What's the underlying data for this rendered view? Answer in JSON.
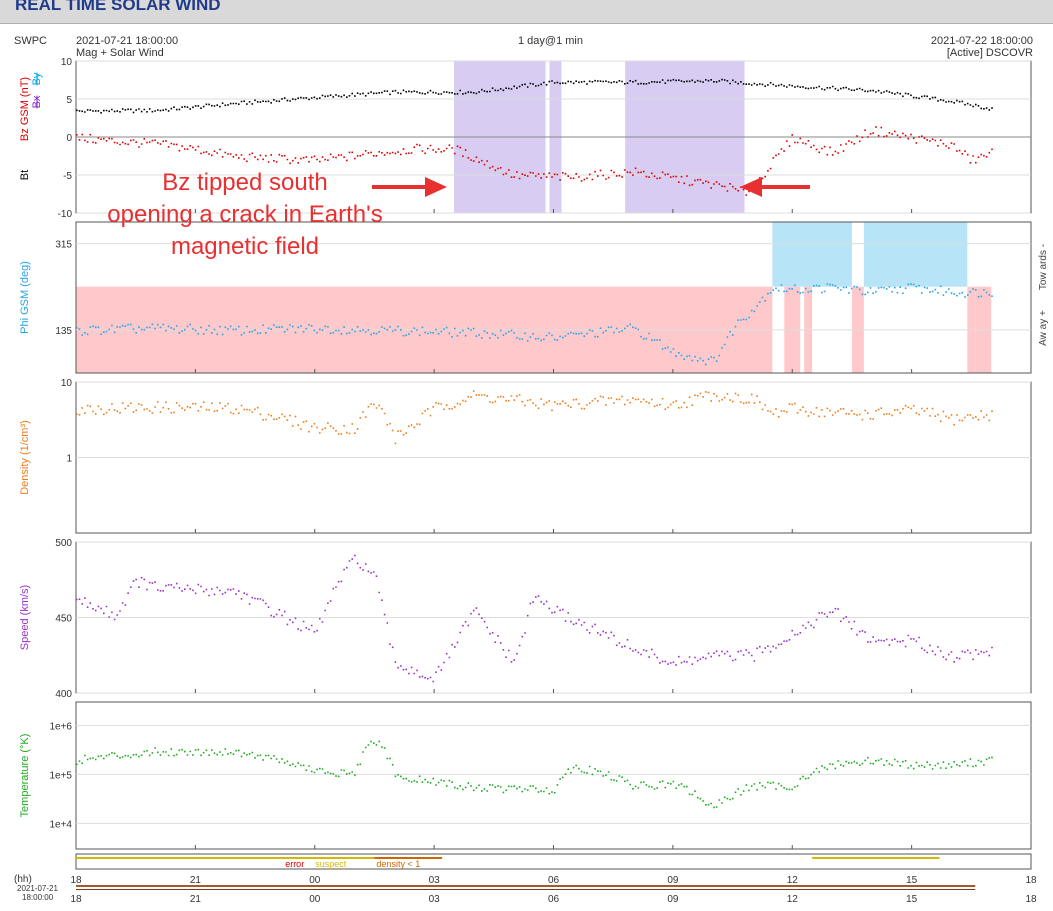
{
  "page_title": "REAL TIME SOLAR WIND",
  "header": {
    "source": "SWPC",
    "start_time": "2021-07-21 18:00:00",
    "subtitle": "Mag + Solar Wind",
    "resolution": "1 day@1 min",
    "end_time": "2021-07-22 18:00:00",
    "spacecraft": "[Active] DSCOVR"
  },
  "annotation": {
    "line1": "Bz tipped south",
    "line2": "opening a crack in Earth's",
    "line3": "magnetic field"
  },
  "colors": {
    "bt": "#000000",
    "bz": "#dd0000",
    "by": "#00a8e8",
    "bx": "#8b2fc9",
    "phi": "#2aa3e6",
    "density": "#ee7d1f",
    "speed": "#9932cc",
    "temperature": "#22aa22",
    "south_shade": "#d8ccf2",
    "towards_shade": "#b8e4f7",
    "away_shade": "#ffc9cc",
    "error": "#dd0000",
    "suspect": "#d4b800",
    "density_lt1": "#cc6600",
    "arrow": "#e83030"
  },
  "xaxis": {
    "unit_label": "(hh)",
    "ticks": [
      "18",
      "21",
      "00",
      "03",
      "06",
      "09",
      "12",
      "15",
      "18"
    ],
    "date_label_line1": "2021-07-21",
    "date_label_line2": "18:00:00"
  },
  "legend_flags": {
    "error": "error",
    "suspect": "suspect",
    "density": "density < 1"
  },
  "chart_data": [
    {
      "type": "scatter",
      "title": "Mag",
      "ylabel": "Bz GSM (nT)",
      "ylabel_extra": [
        "Bt",
        "Bx",
        "By"
      ],
      "ylim": [
        -10,
        10
      ],
      "yticks": [
        "10",
        "5",
        "0",
        "-5",
        "-10"
      ],
      "series": [
        {
          "name": "Bt",
          "x": [
            0,
            2,
            4,
            6,
            8,
            10,
            12,
            14,
            16,
            18,
            20,
            22,
            23
          ],
          "values": [
            3.5,
            3.6,
            4.5,
            5.3,
            6,
            6,
            7.3,
            7.3,
            7.5,
            6.8,
            6.2,
            4.8,
            3.8
          ]
        },
        {
          "name": "Bz",
          "x": [
            0,
            1,
            2,
            3,
            4,
            6,
            7.5,
            8.5,
            9.5,
            11,
            12.5,
            14,
            16,
            16.4,
            16.6,
            16.8,
            17,
            18,
            19,
            20,
            21,
            22,
            22.5,
            23
          ],
          "values": [
            0,
            -0.5,
            -0.8,
            -1.5,
            -2.5,
            -3,
            -2,
            -1.5,
            -1.5,
            -5,
            -5.2,
            -4.5,
            -6.2,
            -6.5,
            -7,
            -7.2,
            -6.5,
            0,
            -2,
            1,
            0,
            -1,
            -3,
            -2
          ]
        }
      ],
      "bz_south_intervals": [
        [
          9.5,
          11.8
        ],
        [
          11.9,
          12.2
        ],
        [
          13.8,
          16.8
        ]
      ]
    },
    {
      "type": "scatter",
      "ylabel": "Phi GSM (deg)",
      "ylim": [
        45,
        360
      ],
      "yticks": [
        "315",
        "135"
      ],
      "right_labels": [
        "Tow ards -",
        "Aw ay +"
      ],
      "series": [
        {
          "name": "Phi",
          "x": [
            0,
            2,
            4,
            6,
            8,
            10,
            12,
            14,
            15,
            16,
            16.6,
            17,
            17.5,
            18,
            19,
            20,
            21,
            22,
            23
          ],
          "values": [
            135,
            140,
            135,
            140,
            135,
            130,
            120,
            140,
            90,
            70,
            150,
            180,
            225,
            220,
            225,
            215,
            225,
            215,
            215
          ]
        }
      ],
      "away_intervals": [
        [
          0,
          17.5
        ],
        [
          17.8,
          18.2
        ],
        [
          18.3,
          18.5
        ],
        [
          19.5,
          19.8
        ],
        [
          22.4,
          22.6
        ],
        [
          22.6,
          23
        ]
      ],
      "towards_intervals": [
        [
          17.5,
          19.5
        ],
        [
          19.8,
          22.4
        ]
      ]
    },
    {
      "type": "scatter",
      "ylabel": "Density (1/cm³)",
      "scale": "log",
      "ylim": [
        0.1,
        10
      ],
      "yticks": [
        "10",
        "1"
      ],
      "series": [
        {
          "name": "Density",
          "x": [
            0,
            2,
            4,
            6,
            7,
            7.5,
            8,
            8.5,
            9,
            10,
            12,
            14,
            15,
            16,
            17,
            17.5,
            18,
            19,
            20,
            21,
            22,
            23
          ],
          "values": [
            4.5,
            4.7,
            4.6,
            2.5,
            2.5,
            5.3,
            1.8,
            2.8,
            4.5,
            6.7,
            5,
            6,
            5,
            7,
            6,
            3.8,
            4.5,
            4,
            3.8,
            4.3,
            3.3,
            3.8
          ]
        }
      ]
    },
    {
      "type": "scatter",
      "ylabel": "Speed (km/s)",
      "ylim": [
        400,
        500
      ],
      "yticks": [
        "500",
        "450",
        "400"
      ],
      "series": [
        {
          "name": "Speed",
          "x": [
            0,
            1,
            1.5,
            2,
            4,
            6,
            6.5,
            7,
            7.5,
            8,
            9,
            10,
            11,
            11.5,
            12,
            14,
            15,
            16,
            17,
            18,
            19,
            20,
            21,
            22,
            23
          ],
          "values": [
            462,
            452,
            475,
            470,
            468,
            440,
            470,
            490,
            478,
            420,
            410,
            455,
            420,
            465,
            455,
            430,
            420,
            425,
            425,
            440,
            455,
            435,
            435,
            425,
            428
          ]
        }
      ]
    },
    {
      "type": "scatter",
      "ylabel": "Temperature (°K)",
      "scale": "log",
      "ylim": [
        3000,
        3000000
      ],
      "yticks": [
        "1e+6",
        "1e+5",
        "1e+4"
      ],
      "series": [
        {
          "name": "Temperature",
          "x": [
            0,
            2,
            4,
            6,
            7,
            7.5,
            8,
            10,
            12,
            12.5,
            14,
            15,
            16,
            17,
            18,
            19,
            20,
            21,
            22,
            23
          ],
          "values": [
            200000,
            300000,
            300000,
            120000,
            100000,
            500000,
            90000,
            55000,
            50000,
            150000,
            60000,
            65000,
            20000,
            60000,
            60000,
            160000,
            200000,
            160000,
            160000,
            200000
          ]
        }
      ]
    }
  ]
}
